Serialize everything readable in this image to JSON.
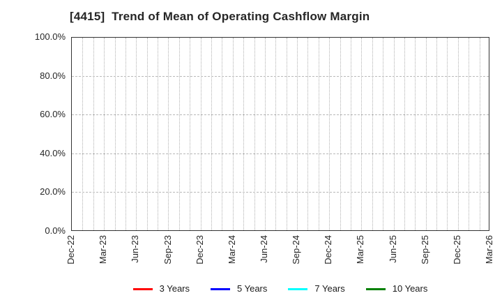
{
  "title": "[4415]  Trend of Mean of Operating Cashflow Margin",
  "chart_data": {
    "type": "line",
    "title": "[4415]  Trend of Mean of Operating Cashflow Margin",
    "xlabel": "",
    "ylabel": "",
    "x_tick_labels": [
      "Dec-22",
      "Mar-23",
      "Jun-23",
      "Sep-23",
      "Dec-23",
      "Mar-24",
      "Jun-24",
      "Sep-24",
      "Dec-24",
      "Mar-25",
      "Jun-25",
      "Sep-25",
      "Dec-25",
      "Mar-26"
    ],
    "months_per_labeled_tick": 3,
    "minor_vertical_grid": "monthly",
    "ylim": [
      0,
      100
    ],
    "y_ticks": [
      0,
      20,
      40,
      60,
      80,
      100
    ],
    "y_tick_labels": [
      "0.0%",
      "20.0%",
      "40.0%",
      "60.0%",
      "80.0%",
      "100.0%"
    ],
    "grid": true,
    "plot_background": "#ffffff",
    "frame_color": "#333333",
    "grid_color": "#b0b0b0",
    "legend_position": "bottom-center",
    "series": [
      {
        "name": "3 Years",
        "color": "#ff0000",
        "values": []
      },
      {
        "name": "5 Years",
        "color": "#0000ff",
        "values": []
      },
      {
        "name": "7 Years",
        "color": "#00ffff",
        "values": []
      },
      {
        "name": "10 Years",
        "color": "#008000",
        "values": []
      }
    ]
  }
}
